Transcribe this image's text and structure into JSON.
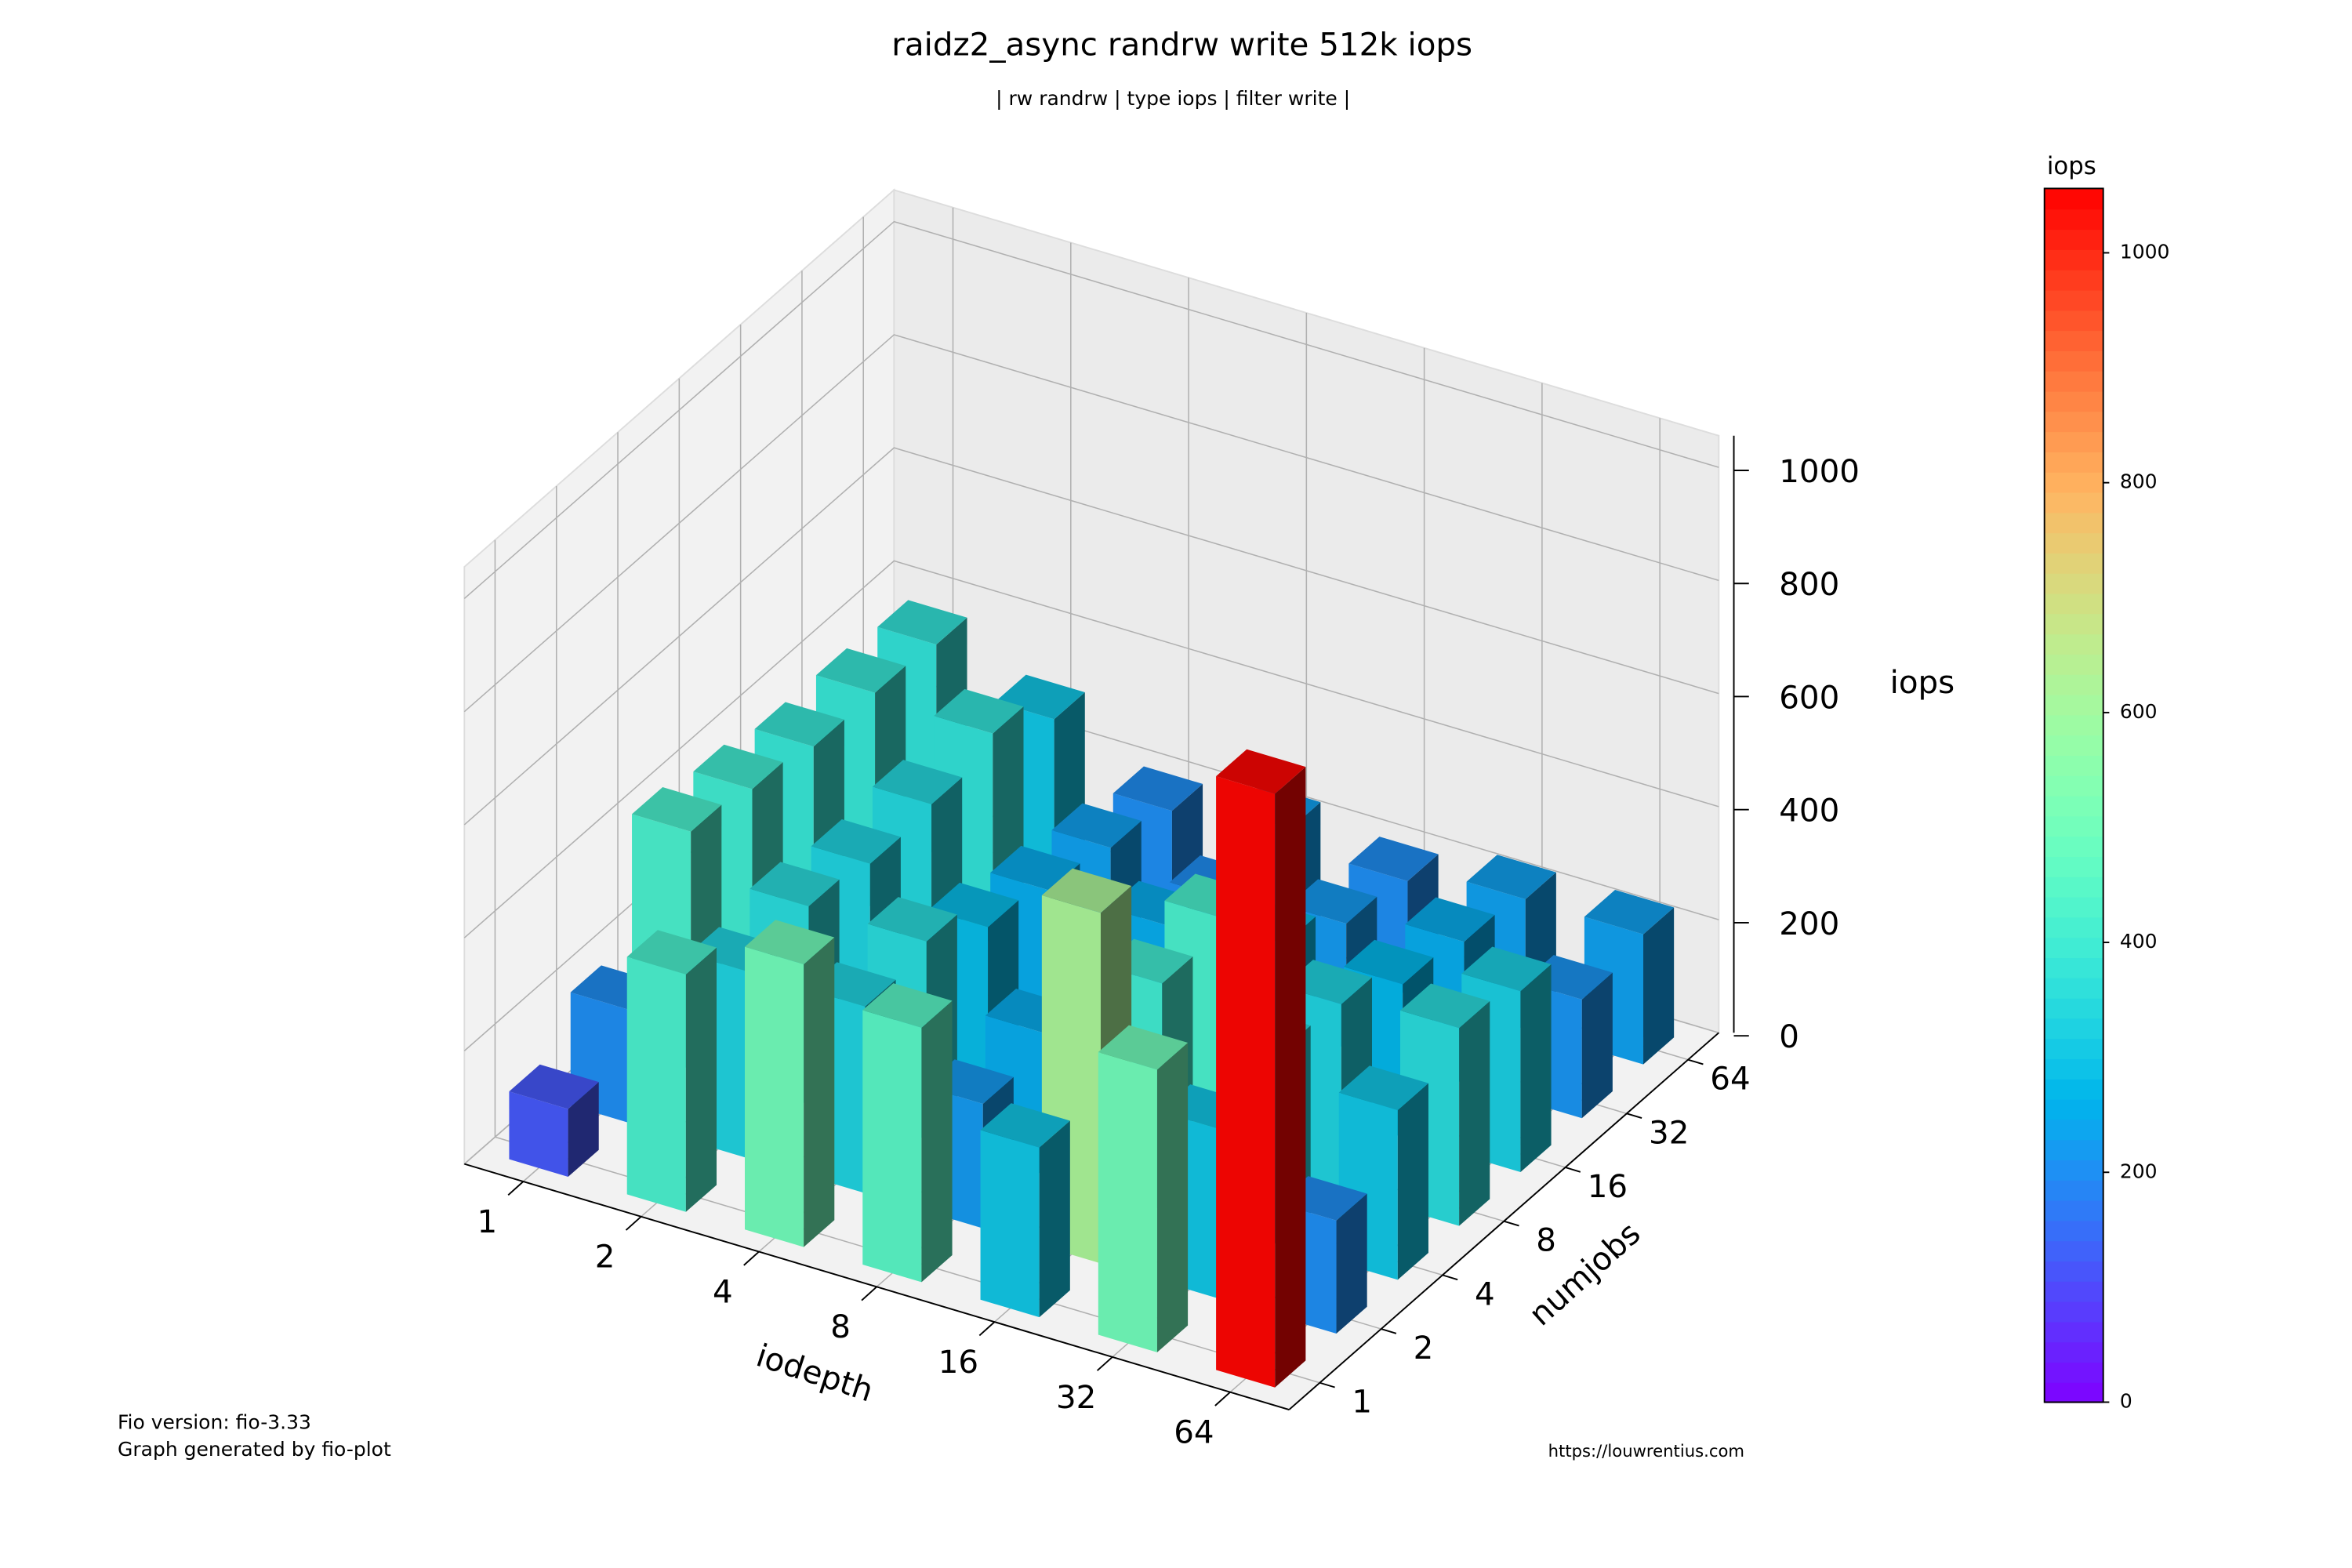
{
  "chart_data": {
    "type": "bar3d",
    "title": "raidz2_async randrw write 512k iops",
    "subtitle": "| rw randrw | type iops | filter write |",
    "x_label": "iodepth",
    "y_label": "numjobs",
    "z_label": "iops",
    "x": [
      "1",
      "2",
      "4",
      "8",
      "16",
      "32",
      "64"
    ],
    "y": [
      "1",
      "2",
      "4",
      "8",
      "16",
      "32",
      "64"
    ],
    "values": [
      [
        120,
        420,
        500,
        450,
        300,
        500,
        1050
      ],
      [
        200,
        330,
        330,
        220,
        620,
        300,
        200
      ],
      [
        420,
        350,
        350,
        250,
        400,
        340,
        300
      ],
      [
        400,
        330,
        280,
        220,
        420,
        330,
        350
      ],
      [
        380,
        340,
        250,
        250,
        280,
        270,
        320
      ],
      [
        380,
        370,
        230,
        200,
        220,
        250,
        210
      ],
      [
        370,
        300,
        200,
        230,
        200,
        230,
        230
      ]
    ],
    "zlim": [
      0,
      1056
    ],
    "zticks": [
      0,
      200,
      400,
      600,
      800,
      1000
    ],
    "colormap": "rainbow",
    "grid": true,
    "colorbar_label": "iops",
    "colorbar_ticks": [
      0,
      200,
      400,
      600,
      800,
      1000
    ],
    "footer_left": [
      "Fio version: fio-3.33",
      "Graph generated by fio-plot"
    ],
    "footer_right": "https://louwrentius.com"
  }
}
